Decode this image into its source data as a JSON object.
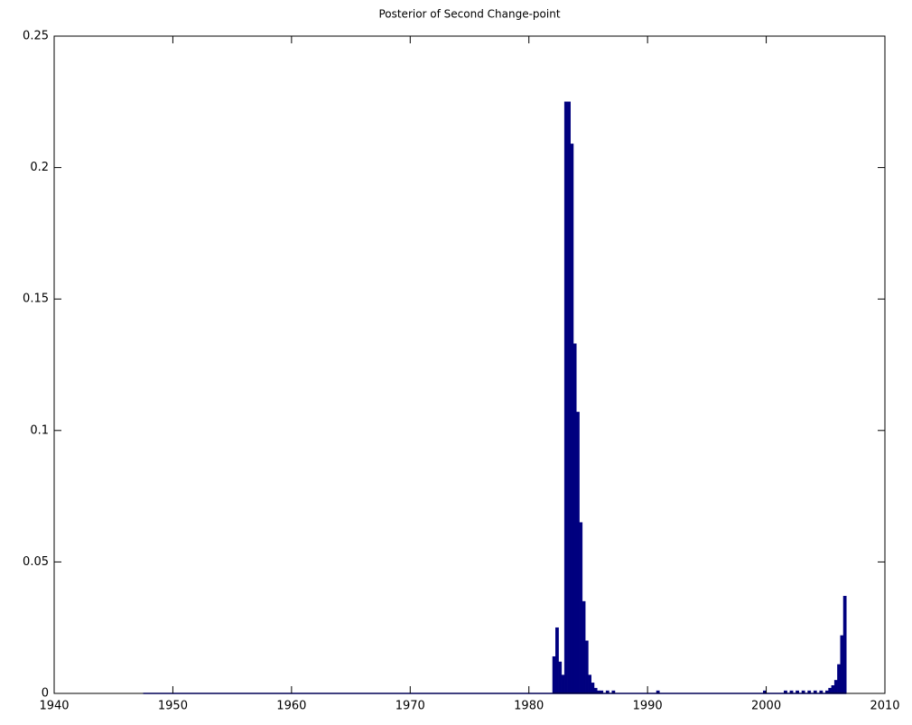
{
  "chart_data": {
    "type": "bar",
    "title": "Posterior of Second Change-point",
    "x": [
      1947.5,
      1982.0,
      1982.25,
      1982.5,
      1982.75,
      1983.0,
      1983.25,
      1983.5,
      1983.75,
      1984.0,
      1984.25,
      1984.5,
      1984.75,
      1985.0,
      1985.25,
      1985.5,
      1985.75,
      1986.0,
      1986.5,
      1987.0,
      1990.75,
      1999.75,
      2001.5,
      2002.0,
      2002.5,
      2003.0,
      2003.5,
      2004.0,
      2004.5,
      2005.0,
      2005.25,
      2005.5,
      2005.75,
      2006.0,
      2006.25,
      2006.5
    ],
    "values": [
      0,
      0.014,
      0.025,
      0.012,
      0.007,
      0.225,
      0.225,
      0.209,
      0.133,
      0.107,
      0.065,
      0.035,
      0.02,
      0.007,
      0.004,
      0.002,
      0.001,
      0.001,
      0.001,
      0.001,
      0.001,
      0.001,
      0.001,
      0.001,
      0.001,
      0.001,
      0.001,
      0.001,
      0.001,
      0.001,
      0.002,
      0.003,
      0.005,
      0.011,
      0.022,
      0.037
    ],
    "color": "#00007f",
    "baseline_color": "#0000ff",
    "xlim": [
      1940,
      2010
    ],
    "xticks": [
      1940,
      1950,
      1960,
      1970,
      1980,
      1990,
      2000,
      2010
    ],
    "ylim": [
      0,
      0.25
    ],
    "yticks": [
      0,
      0.05,
      0.1,
      0.15,
      0.2,
      0.25
    ]
  }
}
